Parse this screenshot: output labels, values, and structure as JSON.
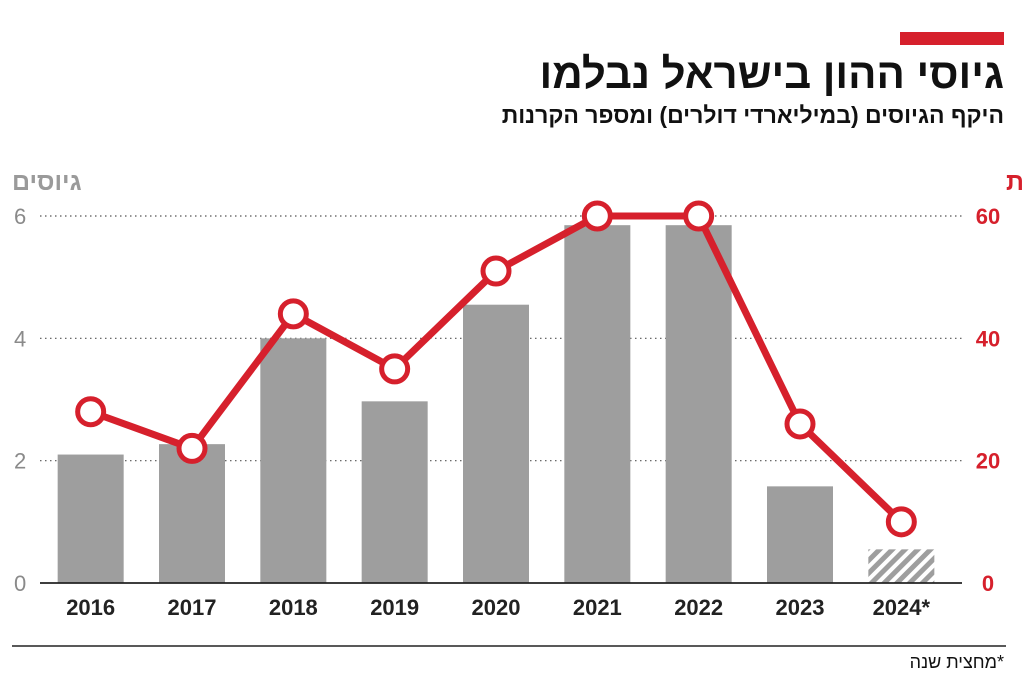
{
  "header": {
    "title": "גיוסי ההון בישראל נבלמו",
    "subtitle": "היקף הגיוסים (במיליארדי דולרים) ומספר הקרנות"
  },
  "footnote": "*מחצית שנה",
  "colors": {
    "accent": "#d6202c",
    "bars": "#9e9e9e",
    "line": "#d6202c"
  },
  "chart_data": {
    "type": "bar+line",
    "categories": [
      "2016",
      "2017",
      "2018",
      "2019",
      "2020",
      "2021",
      "2022",
      "2023",
      "2024*"
    ],
    "series": [
      {
        "name": "גיוסים",
        "type": "bar",
        "axis": "left",
        "values": [
          2.1,
          2.27,
          4.0,
          2.97,
          4.55,
          5.85,
          5.85,
          1.58,
          0.55
        ],
        "hatched_categories": [
          "2024*"
        ]
      },
      {
        "name": "קרנות",
        "type": "line",
        "axis": "right",
        "values": [
          28,
          22,
          44,
          35,
          51,
          60,
          60,
          26,
          10
        ]
      }
    ],
    "left_axis": {
      "title": "גיוסים",
      "ticks": [
        "0",
        "2",
        "4",
        "6"
      ],
      "range": [
        0,
        6
      ]
    },
    "right_axis": {
      "title": "קרנות",
      "ticks": [
        "0",
        "20",
        "40",
        "60"
      ],
      "range": [
        0,
        60
      ]
    },
    "grid": "dotted horizontal",
    "legend": "none"
  }
}
